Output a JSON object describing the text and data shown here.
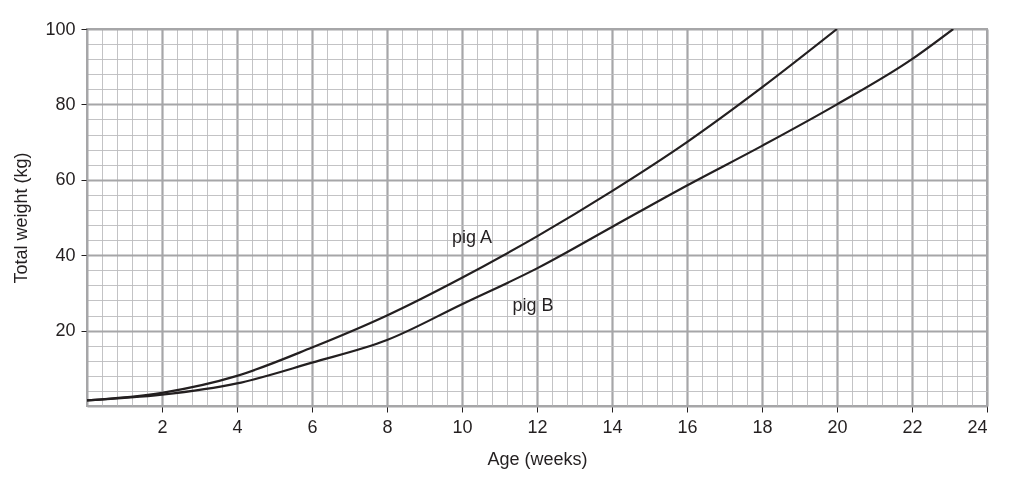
{
  "chart_data": {
    "type": "line",
    "xlabel": "Age (weeks)",
    "ylabel": "Total weight (kg)",
    "series": [
      {
        "name": "pig A",
        "color": "#231f20",
        "x": [
          0,
          2,
          4,
          6,
          8,
          10,
          12,
          14,
          16,
          18,
          20
        ],
        "values": [
          1.5,
          3.5,
          8,
          15.5,
          24,
          34,
          45,
          57,
          70,
          84.5,
          100
        ]
      },
      {
        "name": "pig B",
        "color": "#231f20",
        "x": [
          0,
          2,
          4,
          6,
          8,
          10,
          12,
          14,
          16,
          18,
          20,
          22,
          23.1
        ],
        "values": [
          1.5,
          3,
          6,
          11.5,
          17.5,
          27,
          36.5,
          47.5,
          58.5,
          69,
          80,
          92,
          100
        ]
      }
    ],
    "xlim": [
      0,
      24
    ],
    "ylim": [
      0,
      100
    ],
    "xticks": [
      {
        "value": 0,
        "label": null
      },
      {
        "value": 0.4,
        "label": null
      },
      {
        "value": 0.8,
        "label": null
      },
      {
        "value": 1.2,
        "label": null
      },
      {
        "value": 1.6,
        "label": null
      },
      2,
      {
        "value": 2.4,
        "label": null
      },
      {
        "value": 2.8,
        "label": null
      },
      {
        "value": 3.2,
        "label": null
      },
      {
        "value": 3.6,
        "label": null
      },
      4,
      {
        "value": 4.4,
        "label": null
      },
      {
        "value": 4.8,
        "label": null
      },
      {
        "value": 5.2,
        "label": null
      },
      {
        "value": 5.6,
        "label": null
      },
      6,
      {
        "value": 6.4,
        "label": null
      },
      {
        "value": 6.8,
        "label": null
      },
      {
        "value": 7.2,
        "label": null
      },
      {
        "value": 7.6,
        "label": null
      },
      8,
      {
        "value": 8.4,
        "label": null
      },
      {
        "value": 8.8,
        "label": null
      },
      {
        "value": 9.2,
        "label": null
      },
      {
        "value": 9.6,
        "label": null
      },
      10,
      {
        "value": 10.4,
        "label": null
      },
      {
        "value": 10.8,
        "label": null
      },
      {
        "value": 11.2,
        "label": null
      },
      {
        "value": 11.6,
        "label": null
      },
      12,
      {
        "value": 12.4,
        "label": null
      },
      {
        "value": 12.8,
        "label": null
      },
      {
        "value": 13.2,
        "label": null
      },
      {
        "value": 13.6,
        "label": null
      },
      14,
      {
        "value": 14.4,
        "label": null
      },
      {
        "value": 14.8,
        "label": null
      },
      {
        "value": 15.2,
        "label": null
      },
      {
        "value": 15.6,
        "label": null
      },
      16,
      {
        "value": 16.4,
        "label": null
      },
      {
        "value": 16.8,
        "label": null
      },
      {
        "value": 17.2,
        "label": null
      },
      {
        "value": 17.6,
        "label": null
      },
      18,
      {
        "value": 18.4,
        "label": null
      },
      {
        "value": 18.8,
        "label": null
      },
      {
        "value": 19.2,
        "label": null
      },
      {
        "value": 19.6,
        "label": null
      },
      20,
      {
        "value": 20.4,
        "label": null
      },
      {
        "value": 20.8,
        "label": null
      },
      {
        "value": 21.2,
        "label": null
      },
      {
        "value": 21.6,
        "label": null
      },
      22,
      {
        "value": 22.4,
        "label": null
      },
      {
        "value": 22.8,
        "label": null
      },
      {
        "value": 23.2,
        "label": null
      },
      {
        "value": 23.6,
        "label": null
      },
      24
    ],
    "yticks": [
      {
        "value": 0,
        "label": null
      },
      {
        "value": 4,
        "label": null
      },
      {
        "value": 8,
        "label": null
      },
      {
        "value": 12,
        "label": null
      },
      {
        "value": 16,
        "label": null
      },
      20,
      {
        "value": 24,
        "label": null
      },
      {
        "value": 28,
        "label": null
      },
      {
        "value": 32,
        "label": null
      },
      {
        "value": 36,
        "label": null
      },
      40,
      {
        "value": 44,
        "label": null
      },
      {
        "value": 48,
        "label": null
      },
      {
        "value": 52,
        "label": null
      },
      {
        "value": 56,
        "label": null
      },
      60,
      {
        "value": 64,
        "label": null
      },
      {
        "value": 68,
        "label": null
      },
      {
        "value": 72,
        "label": null
      },
      {
        "value": 76,
        "label": null
      },
      80,
      {
        "value": 84,
        "label": null
      },
      {
        "value": 88,
        "label": null
      },
      {
        "value": 92,
        "label": null
      },
      {
        "value": 96,
        "label": null
      },
      100
    ],
    "grid": true,
    "marker": "none",
    "line_style": "solid"
  }
}
